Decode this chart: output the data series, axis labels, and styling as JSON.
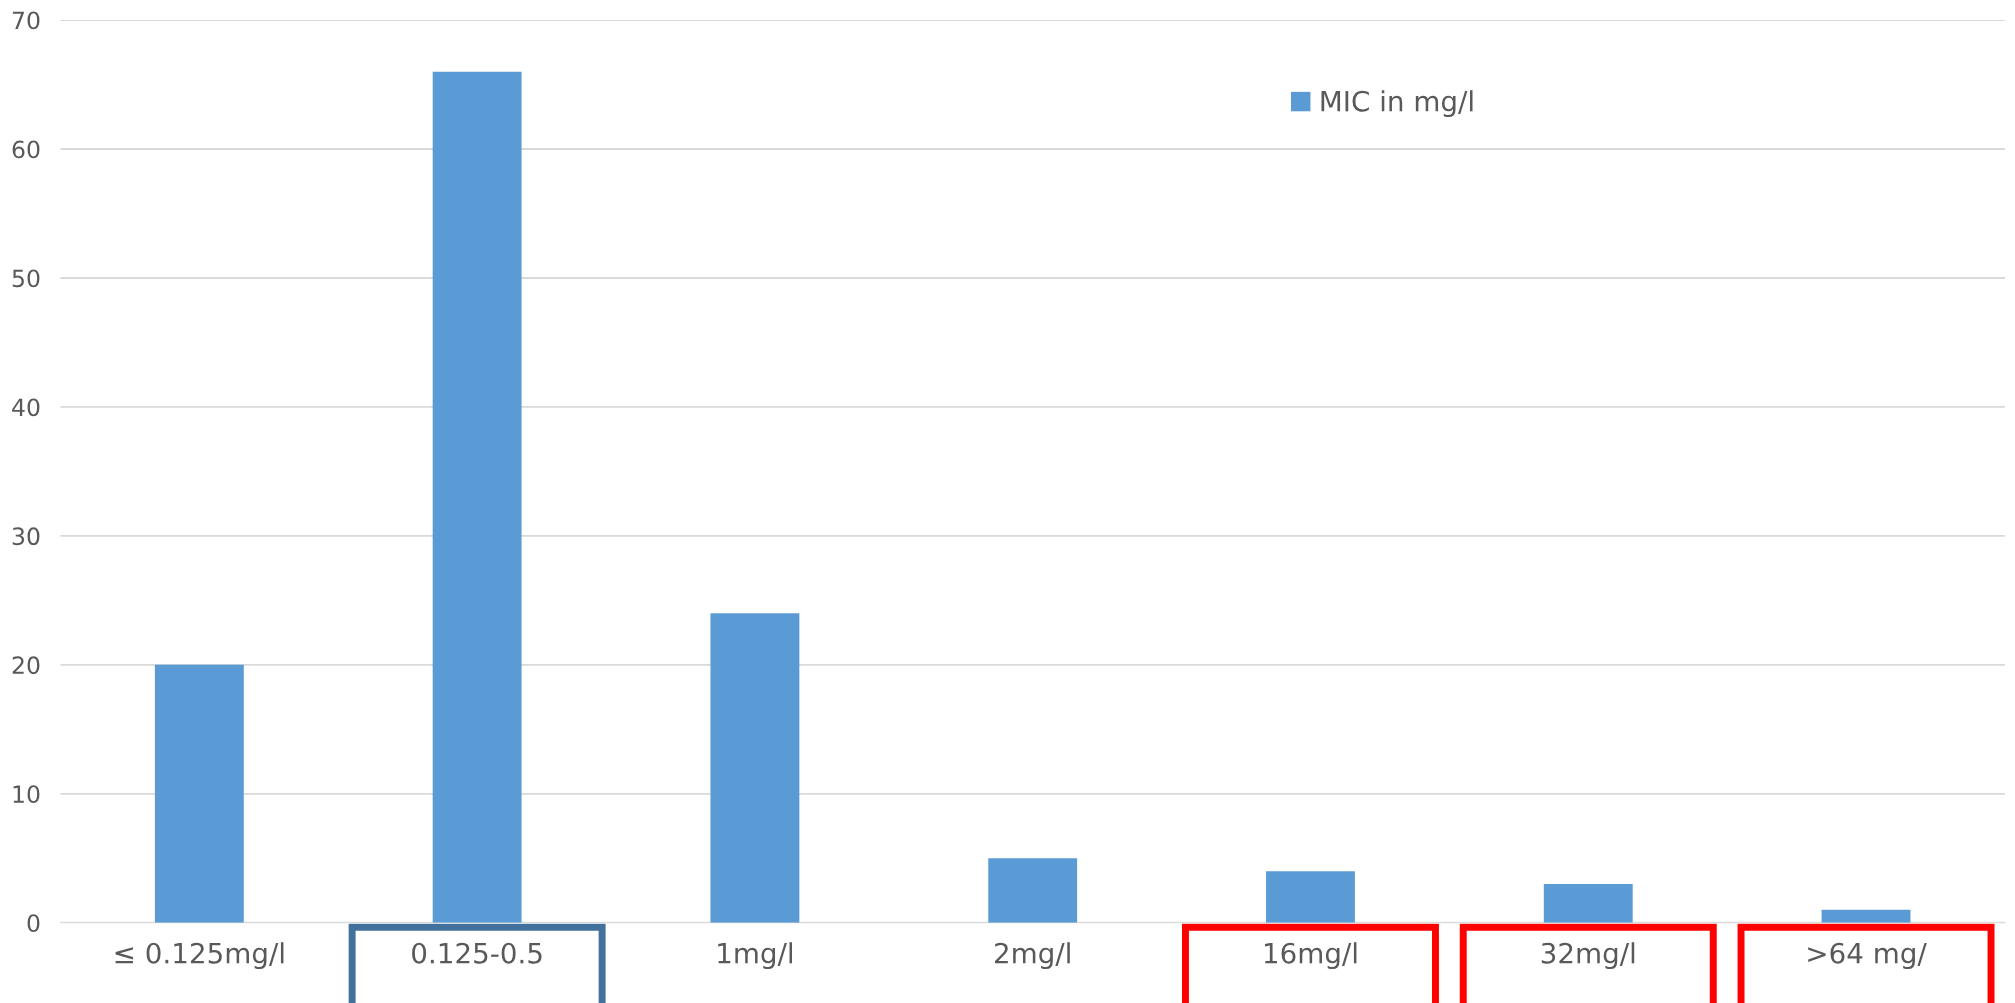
{
  "chart_data": {
    "type": "bar",
    "categories": [
      "≤ 0.125mg/l",
      "0.125-0.5",
      "1mg/l",
      "2mg/l",
      "16mg/l",
      "32mg/l",
      ">64 mg/"
    ],
    "series": [
      {
        "name": "MIC in mg/l",
        "color": "#5b9bd5",
        "values": [
          20,
          66,
          24,
          5,
          4,
          3,
          1
        ]
      }
    ],
    "ylim": [
      0,
      70
    ],
    "yticks": [
      0,
      10,
      20,
      30,
      40,
      50,
      60,
      70
    ],
    "grid": "y",
    "legend": "top right"
  }
}
